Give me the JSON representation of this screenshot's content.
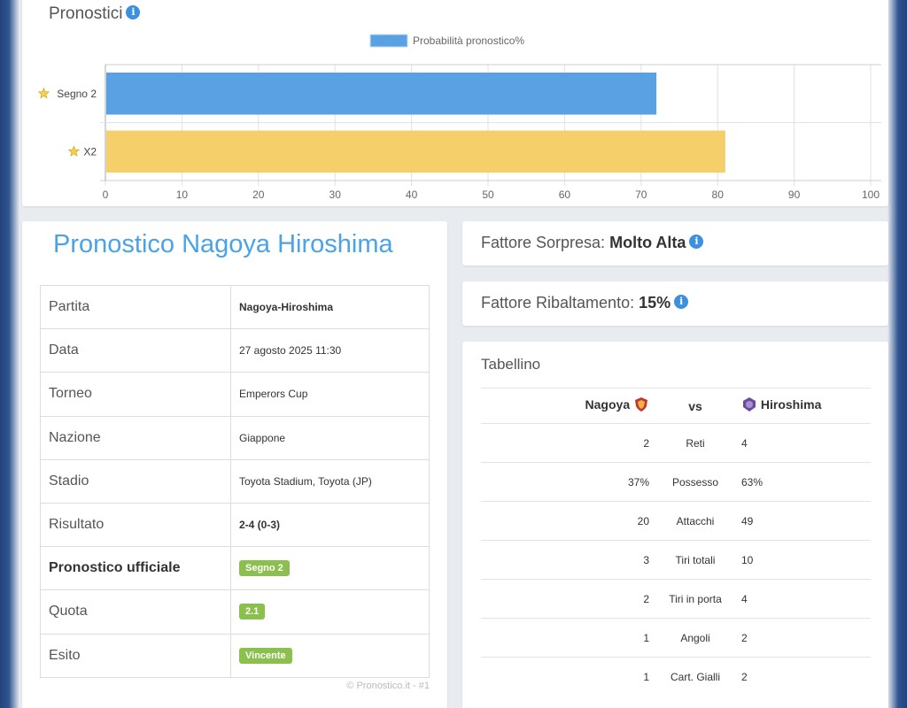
{
  "pronostici": {
    "title": "Pronostici",
    "info_icon": "info-icon"
  },
  "chart_data": {
    "type": "bar",
    "orientation": "horizontal",
    "legend": "Probabilità pronostico%",
    "legend_position": "top",
    "categories": [
      "Segno 2",
      "X2"
    ],
    "values": [
      72,
      81
    ],
    "colors": [
      "#5aa1e3",
      "#f5cf6a"
    ],
    "xlim": [
      0,
      100
    ],
    "ticks": [
      0,
      10,
      20,
      30,
      40,
      50,
      60,
      70,
      80,
      90,
      100
    ],
    "grid": true,
    "category_icon": "star-icon"
  },
  "pronostico": {
    "heading": "Pronostico Nagoya Hiroshima",
    "rows": [
      {
        "label": "Partita",
        "value": "Nagoya-Hiroshima",
        "bold_value": true
      },
      {
        "label": "Data",
        "value": "27 agosto 2025 11:30"
      },
      {
        "label": "Torneo",
        "value": "Emperors Cup"
      },
      {
        "label": "Nazione",
        "value": "Giappone"
      },
      {
        "label": "Stadio",
        "value": "Toyota Stadium, Toyota (JP)"
      },
      {
        "label": "Risultato",
        "value": "2-4 (0-3)",
        "bold_value": true
      },
      {
        "label": "Pronostico ufficiale",
        "value": "Segno 2",
        "badge": true,
        "bold_label": true
      },
      {
        "label": "Quota",
        "value": "2.1",
        "badge": true
      },
      {
        "label": "Esito",
        "value": "Vincente",
        "badge": true
      }
    ],
    "copyright": "© Pronostico.it - #1",
    "badge_color": "#8cc04e"
  },
  "sorpresa": {
    "label": "Fattore Sorpresa:",
    "value": "Molto Alta"
  },
  "ribaltamento": {
    "label": "Fattore Ribaltamento:",
    "value": "15%"
  },
  "tabellino": {
    "title": "Tabellino",
    "home": "Nagoya",
    "vs": "vs",
    "away": "Hiroshima",
    "stats": [
      {
        "home": "2",
        "label": "Reti",
        "away": "4"
      },
      {
        "home": "37%",
        "label": "Possesso",
        "away": "63%"
      },
      {
        "home": "20",
        "label": "Attacchi",
        "away": "49"
      },
      {
        "home": "3",
        "label": "Tiri totali",
        "away": "10"
      },
      {
        "home": "2",
        "label": "Tiri in porta",
        "away": "4"
      },
      {
        "home": "1",
        "label": "Angoli",
        "away": "2"
      },
      {
        "home": "1",
        "label": "Cart. Gialli",
        "away": "2"
      }
    ]
  }
}
